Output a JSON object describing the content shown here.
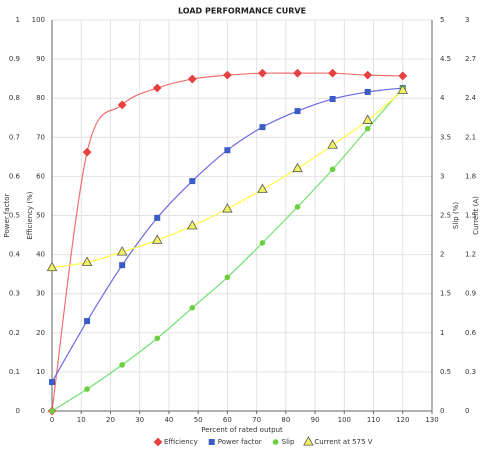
{
  "chart_data": {
    "type": "line",
    "title": "LOAD PERFORMANCE CURVE",
    "x_label": "Percent of rated output",
    "xlim": [
      0,
      130
    ],
    "xticks": [
      0,
      10,
      20,
      30,
      40,
      50,
      60,
      70,
      80,
      90,
      100,
      110,
      120,
      130
    ],
    "x": [
      0,
      12,
      24,
      36,
      48,
      60,
      72,
      84,
      96,
      108,
      120
    ],
    "grid": true,
    "legend": "bottom",
    "y_axes": [
      {
        "label": "Power factor",
        "lim": [
          0,
          1
        ],
        "ticks": [
          0,
          0.1,
          0.2,
          0.3,
          0.4,
          0.5,
          0.6,
          0.7,
          0.8,
          0.9,
          1
        ]
      },
      {
        "label": "Efficiency (%)",
        "lim": [
          0,
          100
        ],
        "ticks": [
          0,
          10,
          20,
          30,
          40,
          50,
          60,
          70,
          80,
          90,
          100
        ]
      },
      {
        "label": "Slip (%)",
        "lim": [
          0,
          5
        ],
        "ticks": [
          0,
          0.5,
          1,
          1.5,
          2,
          2.5,
          3,
          3.5,
          4,
          4.5,
          5
        ]
      },
      {
        "label": "Current (A)",
        "lim": [
          0,
          3
        ],
        "ticks": [
          0,
          0.3,
          0.6,
          0.9,
          1.2,
          1.5,
          1.8,
          2.1,
          2.4,
          2.7,
          3
        ]
      }
    ],
    "series": [
      {
        "name": "Efficiency",
        "axis": 1,
        "marker": "diamond",
        "color": "#e84040",
        "line_color": "#f07070",
        "values": [
          0,
          66.2,
          78.3,
          82.6,
          84.9,
          85.9,
          86.4,
          86.4,
          86.4,
          85.9,
          85.7
        ]
      },
      {
        "name": "Power factor",
        "axis": 0,
        "marker": "square",
        "color": "#3a5cc8",
        "line_color": "#6a6ae0",
        "values": [
          0.074,
          0.23,
          0.373,
          0.494,
          0.588,
          0.667,
          0.726,
          0.767,
          0.798,
          0.816,
          0.826
        ]
      },
      {
        "name": "Slip",
        "axis": 2,
        "marker": "circle",
        "color": "#6ad040",
        "line_color": "#70e070",
        "values": [
          0,
          0.28,
          0.59,
          0.93,
          1.32,
          1.71,
          2.15,
          2.61,
          3.09,
          3.61,
          4.13
        ]
      },
      {
        "name": "Current at 575 V",
        "axis": 3,
        "marker": "triangle",
        "color": "#f0f060",
        "line_color": "#ffff40",
        "values": [
          1.1,
          1.14,
          1.22,
          1.31,
          1.42,
          1.55,
          1.7,
          1.86,
          2.04,
          2.23,
          2.46
        ]
      }
    ]
  }
}
